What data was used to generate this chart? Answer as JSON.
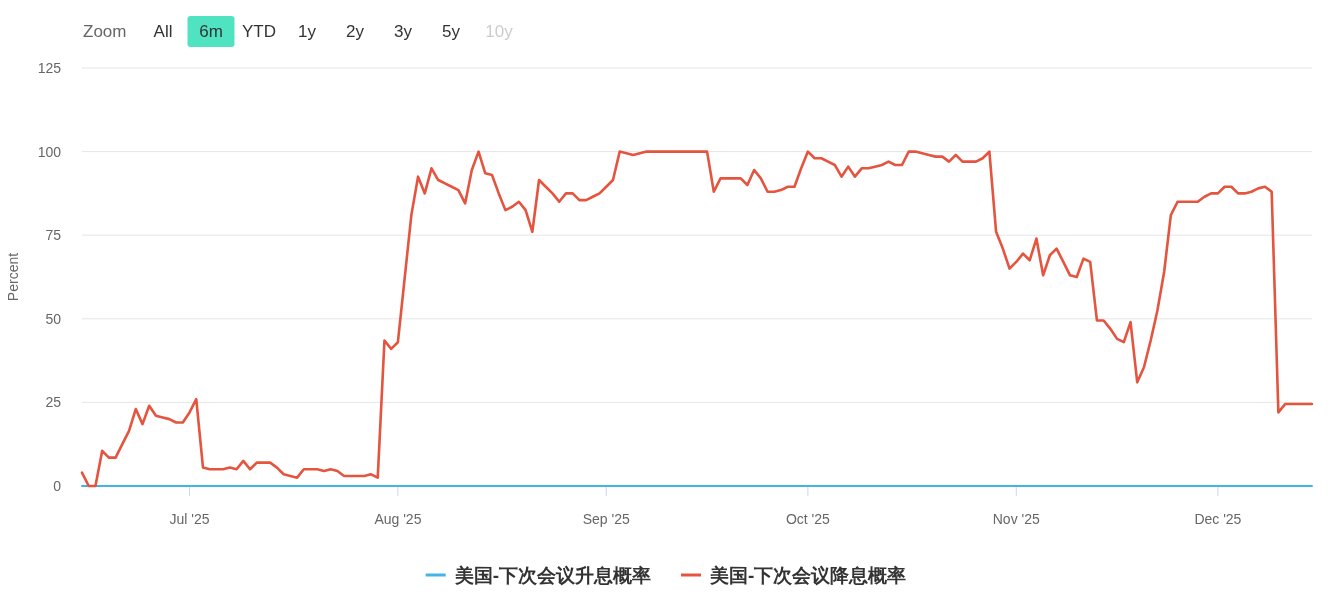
{
  "chart_data": {
    "type": "line",
    "ylabel": "Percent",
    "annotations": [
      "Zoom",
      "All",
      "6m",
      "YTD",
      "1y",
      "2y",
      "3y",
      "5y",
      "10y"
    ],
    "xlim": [
      "2025-06-15",
      "2025-12-15"
    ],
    "xticks": [
      {
        "value": "2025-07-01",
        "label": "Jul '25"
      },
      {
        "value": "2025-08-01",
        "label": "Aug '25"
      },
      {
        "value": "2025-09-01",
        "label": "Sep '25"
      },
      {
        "value": "2025-10-01",
        "label": "Oct '25"
      },
      {
        "value": "2025-11-01",
        "label": "Nov '25"
      },
      {
        "value": "2025-12-01",
        "label": "Dec '25"
      }
    ],
    "ylim": [
      0,
      125
    ],
    "yticks": [
      0,
      25,
      50,
      75,
      100,
      125
    ],
    "grid": "y",
    "legend": "bottom",
    "series": [
      {
        "name": "美国-下次会议升息概率",
        "color": "#41b6e6",
        "x": [
          "2025-06-15",
          "2025-12-15"
        ],
        "values": [
          0,
          0
        ]
      },
      {
        "name": "美国-下次会议降息概率",
        "color": "#e4543e",
        "x": [
          "2025-06-15",
          "2025-06-16",
          "2025-06-17",
          "2025-06-18",
          "2025-06-19",
          "2025-06-20",
          "2025-06-21",
          "2025-06-22",
          "2025-06-23",
          "2025-06-24",
          "2025-06-25",
          "2025-06-26",
          "2025-06-27",
          "2025-06-28",
          "2025-06-29",
          "2025-06-30",
          "2025-07-01",
          "2025-07-02",
          "2025-07-03",
          "2025-07-04",
          "2025-07-06",
          "2025-07-07",
          "2025-07-08",
          "2025-07-09",
          "2025-07-10",
          "2025-07-11",
          "2025-07-13",
          "2025-07-14",
          "2025-07-15",
          "2025-07-16",
          "2025-07-17",
          "2025-07-18",
          "2025-07-20",
          "2025-07-21",
          "2025-07-22",
          "2025-07-23",
          "2025-07-24",
          "2025-07-27",
          "2025-07-28",
          "2025-07-29",
          "2025-07-30",
          "2025-07-31",
          "2025-08-01",
          "2025-08-03",
          "2025-08-04",
          "2025-08-05",
          "2025-08-06",
          "2025-08-07",
          "2025-08-08",
          "2025-08-09",
          "2025-08-10",
          "2025-08-11",
          "2025-08-12",
          "2025-08-13",
          "2025-08-14",
          "2025-08-15",
          "2025-08-16",
          "2025-08-17",
          "2025-08-18",
          "2025-08-19",
          "2025-08-20",
          "2025-08-21",
          "2025-08-22",
          "2025-08-23",
          "2025-08-24",
          "2025-08-25",
          "2025-08-26",
          "2025-08-27",
          "2025-08-28",
          "2025-08-29",
          "2025-08-30",
          "2025-08-31",
          "2025-09-01",
          "2025-09-02",
          "2025-09-03",
          "2025-09-04",
          "2025-09-05",
          "2025-09-06",
          "2025-09-07",
          "2025-09-16",
          "2025-09-17",
          "2025-09-18",
          "2025-09-21",
          "2025-09-22",
          "2025-09-23",
          "2025-09-24",
          "2025-09-25",
          "2025-09-26",
          "2025-09-27",
          "2025-09-28",
          "2025-09-29",
          "2025-09-30",
          "2025-10-01",
          "2025-10-02",
          "2025-10-03",
          "2025-10-04",
          "2025-10-05",
          "2025-10-06",
          "2025-10-07",
          "2025-10-08",
          "2025-10-09",
          "2025-10-10",
          "2025-10-11",
          "2025-10-12",
          "2025-10-13",
          "2025-10-14",
          "2025-10-15",
          "2025-10-16",
          "2025-10-17",
          "2025-10-18",
          "2025-10-19",
          "2025-10-20",
          "2025-10-21",
          "2025-10-22",
          "2025-10-23",
          "2025-10-24",
          "2025-10-26",
          "2025-10-27",
          "2025-10-28",
          "2025-10-29",
          "2025-10-30",
          "2025-10-31",
          "2025-11-01",
          "2025-11-02",
          "2025-11-03",
          "2025-11-04",
          "2025-11-05",
          "2025-11-06",
          "2025-11-07",
          "2025-11-08",
          "2025-11-09",
          "2025-11-10",
          "2025-11-11",
          "2025-11-12",
          "2025-11-13",
          "2025-11-14",
          "2025-11-15",
          "2025-11-16",
          "2025-11-17",
          "2025-11-18",
          "2025-11-19",
          "2025-11-20",
          "2025-11-21",
          "2025-11-22",
          "2025-11-23",
          "2025-11-24",
          "2025-11-25",
          "2025-11-28",
          "2025-11-29",
          "2025-11-30",
          "2025-12-01",
          "2025-12-02",
          "2025-12-03",
          "2025-12-04",
          "2025-12-05",
          "2025-12-06",
          "2025-12-07",
          "2025-12-08",
          "2025-12-09",
          "2025-12-10",
          "2025-12-11",
          "2025-12-15"
        ],
        "values": [
          4,
          0,
          0,
          10.5,
          8.5,
          8.5,
          12.5,
          16.5,
          23,
          18.5,
          24,
          21,
          20.5,
          20,
          19,
          19,
          22,
          26,
          5.5,
          5,
          5,
          5.5,
          5,
          7.5,
          5,
          7,
          7,
          5.5,
          3.5,
          3,
          2.5,
          5,
          5,
          4.5,
          5,
          4.5,
          3,
          3,
          3.5,
          2.5,
          43.5,
          41,
          43,
          81,
          92.5,
          87.5,
          95,
          91.5,
          90.5,
          89.5,
          88.5,
          84.5,
          94.5,
          100,
          93.5,
          93,
          87.5,
          82.5,
          83.5,
          85,
          82.5,
          76,
          91.5,
          89.5,
          87.5,
          85,
          87.5,
          87.5,
          85.5,
          85.5,
          86.5,
          87.5,
          89.5,
          91.5,
          100,
          99.5,
          99,
          99.5,
          100,
          100,
          88,
          92,
          92,
          90,
          94.5,
          92,
          88,
          88,
          88.5,
          89.5,
          89.5,
          95,
          100,
          98,
          98,
          97,
          96,
          92.5,
          95.5,
          92.5,
          95,
          95,
          95.5,
          96,
          97,
          96,
          96,
          100,
          100,
          99.5,
          99,
          98.5,
          98.5,
          97,
          99,
          97,
          97,
          98,
          100,
          76,
          71,
          65,
          67,
          69.5,
          67.5,
          74,
          63,
          69,
          71,
          67,
          63,
          62.5,
          68,
          67,
          49.5,
          49.5,
          47,
          44,
          43,
          49,
          31,
          35.5,
          43.5,
          52.5,
          64,
          81,
          85,
          85,
          86.5,
          87.5,
          87.5,
          89.5,
          89.5,
          87.5,
          87.5,
          88,
          89,
          89.5,
          88,
          22,
          24.5,
          24.5
        ]
      }
    ]
  }
}
